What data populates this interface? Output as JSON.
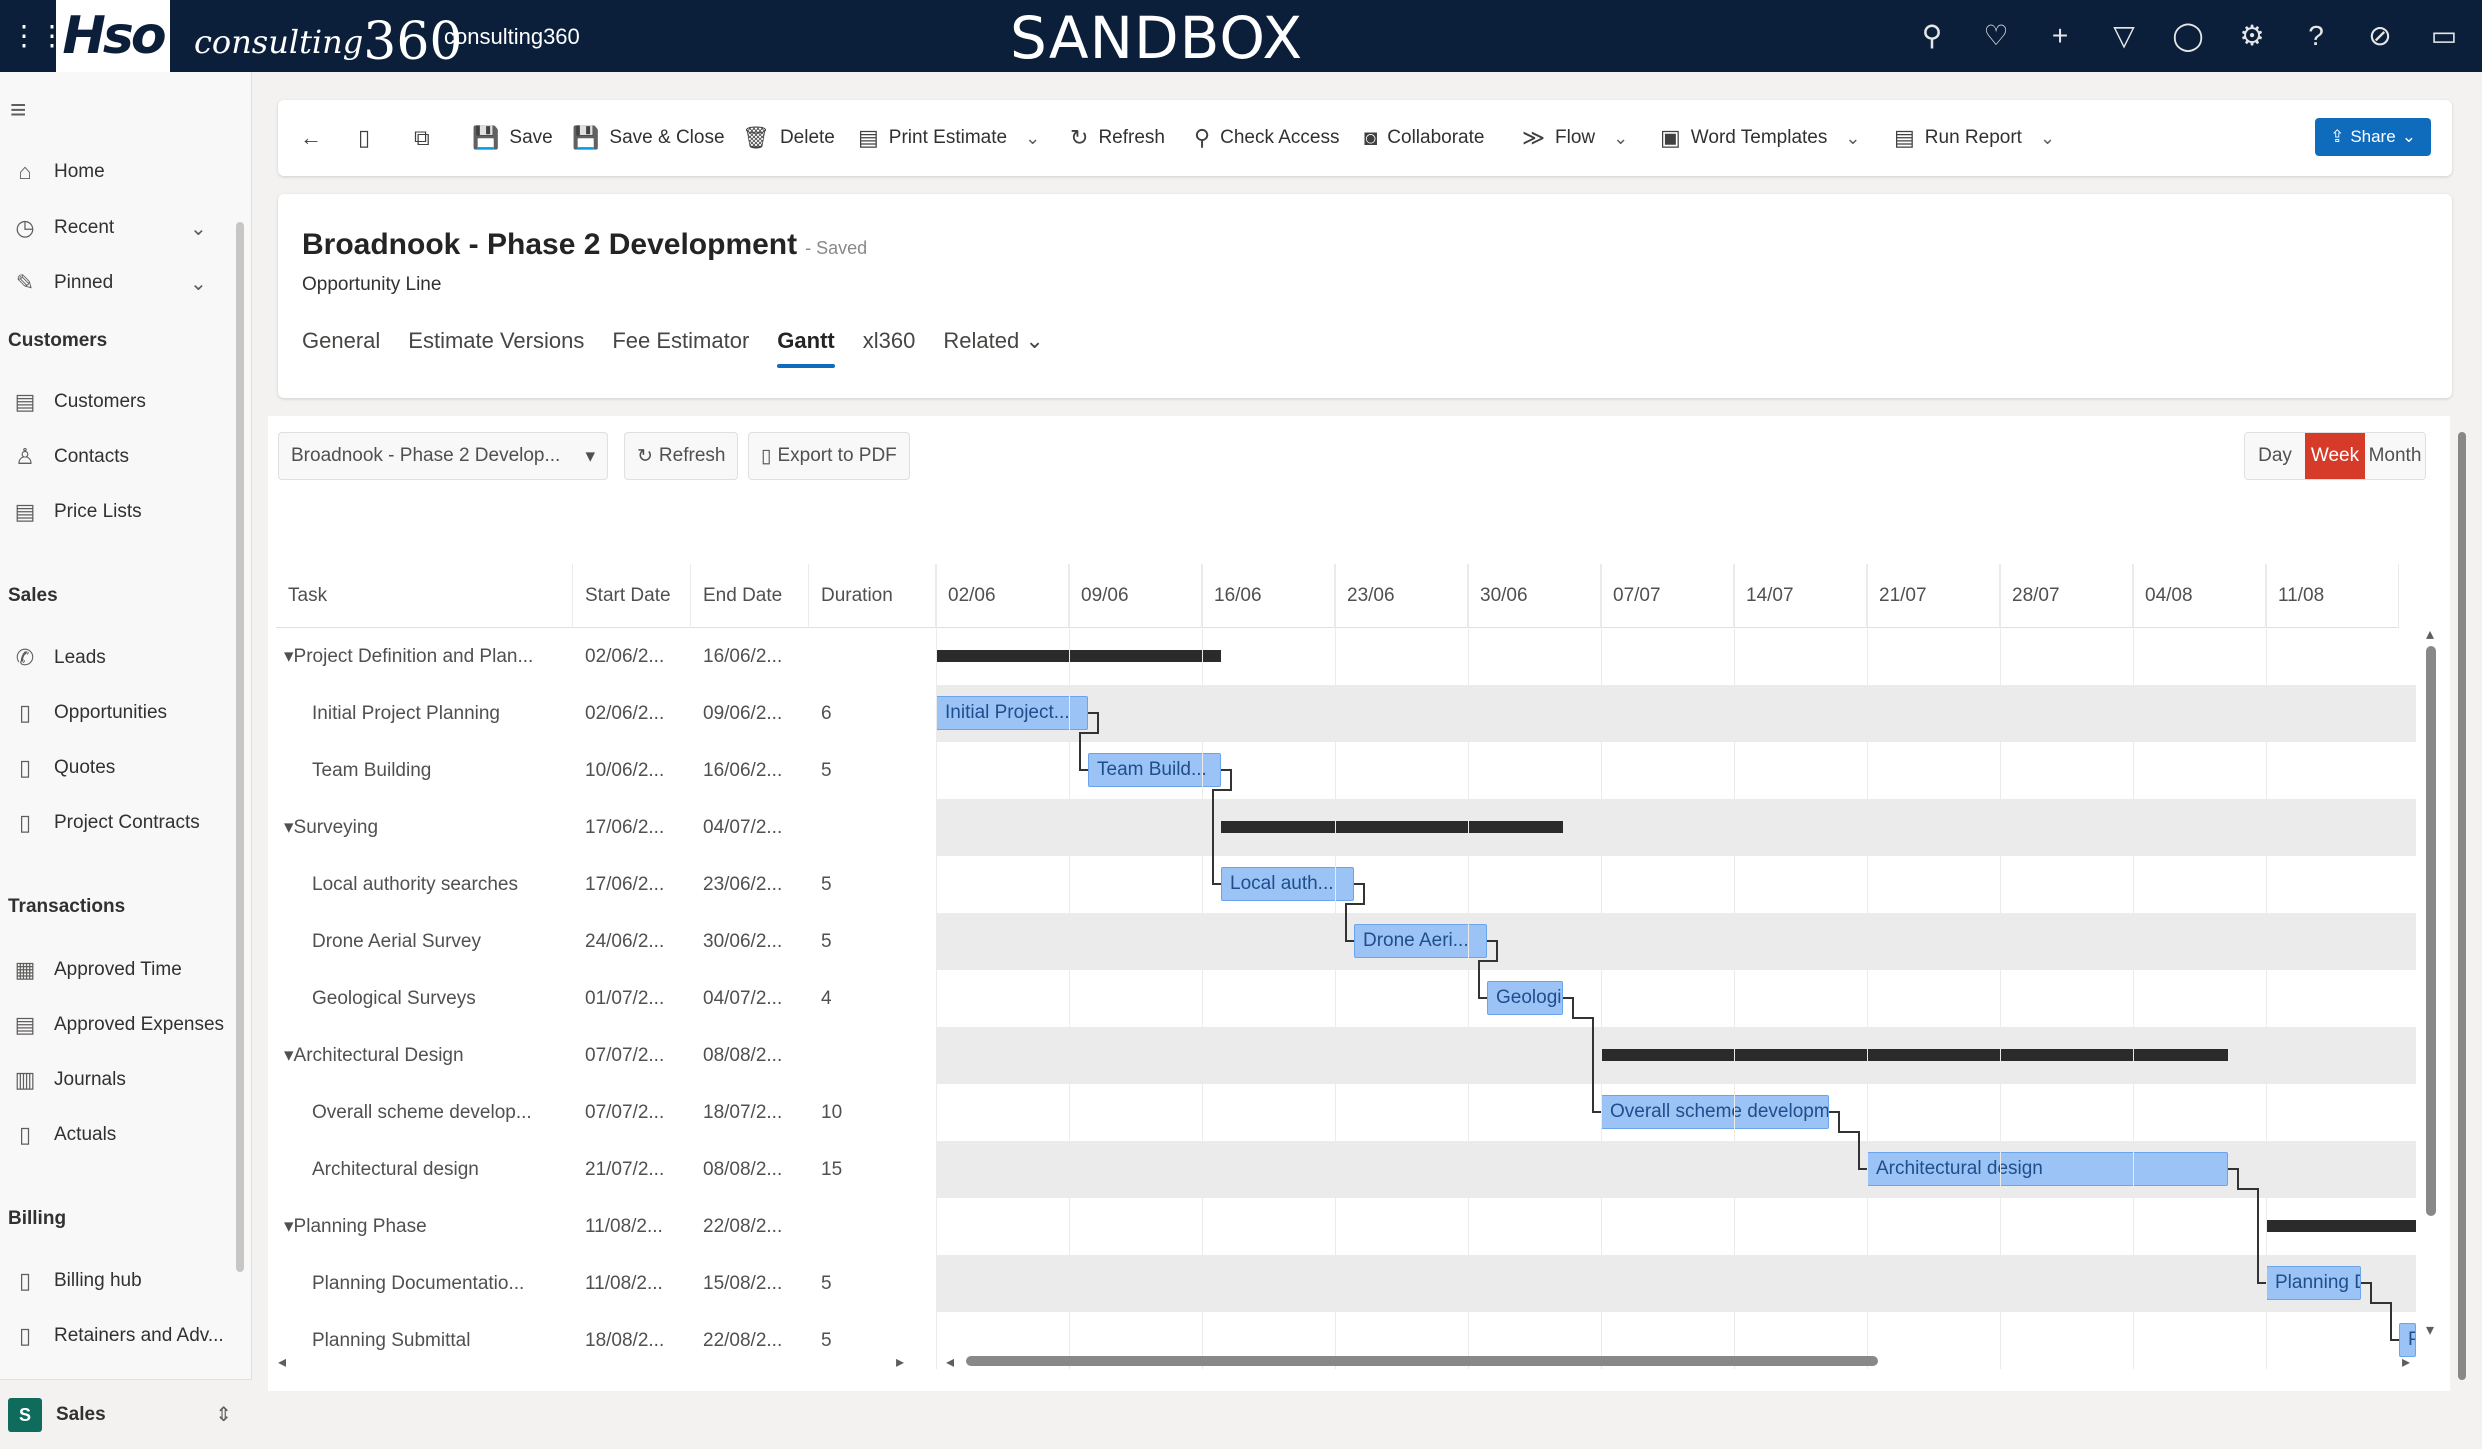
{
  "topbar": {
    "brand_left": "Hso",
    "brand_mid": "consulting",
    "brand_mid_num": "360",
    "env_name": "consulting360",
    "environment": "SANDBOX",
    "icons": [
      "search-icon",
      "lightbulb-icon",
      "plus-icon",
      "filter-icon",
      "bell-icon",
      "settings-icon",
      "help-icon",
      "assist-icon",
      "chat-icon"
    ]
  },
  "sidebar": {
    "top": [
      {
        "label": "Home",
        "icon": "home-icon"
      },
      {
        "label": "Recent",
        "icon": "clock-icon",
        "chevron": true
      },
      {
        "label": "Pinned",
        "icon": "pin-icon",
        "chevron": true
      }
    ],
    "groups": [
      {
        "title": "Customers",
        "items": [
          "Customers",
          "Contacts",
          "Price Lists"
        ]
      },
      {
        "title": "Sales",
        "items": [
          "Leads",
          "Opportunities",
          "Quotes",
          "Project Contracts"
        ]
      },
      {
        "title": "Transactions",
        "items": [
          "Approved Time",
          "Approved Expenses",
          "Journals",
          "Actuals"
        ]
      },
      {
        "title": "Billing",
        "items": [
          "Billing hub",
          "Retainers and Adv..."
        ]
      }
    ],
    "area": {
      "badge": "S",
      "label": "Sales"
    }
  },
  "commands": [
    {
      "label": "Save"
    },
    {
      "label": "Save & Close"
    },
    {
      "label": "Delete"
    },
    {
      "label": "Print Estimate"
    },
    {
      "label": "Refresh"
    },
    {
      "label": "Check Access"
    },
    {
      "label": "Collaborate"
    },
    {
      "label": "Flow"
    },
    {
      "label": "Word Templates"
    },
    {
      "label": "Run Report"
    }
  ],
  "share_label": "Share",
  "record": {
    "title": "Broadnook - Phase 2 Development",
    "saved": "- Saved",
    "type": "Opportunity Line",
    "tabs": [
      "General",
      "Estimate Versions",
      "Fee Estimator",
      "Gantt",
      "xl360",
      "Related"
    ]
  },
  "gantt": {
    "project_select": "Broadnook - Phase 2 Develop...",
    "refresh": "Refresh",
    "export": "Export to PDF",
    "views": [
      "Day",
      "Week",
      "Month"
    ],
    "active_view": "Week",
    "columns": [
      "Task",
      "Start Date",
      "End Date",
      "Duration"
    ],
    "weeks": [
      "02/06",
      "09/06",
      "16/06",
      "23/06",
      "30/06",
      "07/07",
      "14/07",
      "21/07",
      "28/07",
      "04/08",
      "11/08"
    ],
    "rows": [
      {
        "task": "Project Definition and Plan...",
        "start": "02/06/2...",
        "end": "16/06/2...",
        "duration": "",
        "summary": true
      },
      {
        "task": "Initial Project Planning",
        "start": "02/06/2...",
        "end": "09/06/2...",
        "duration": "6",
        "bar": "Initial Project..."
      },
      {
        "task": "Team Building",
        "start": "10/06/2...",
        "end": "16/06/2...",
        "duration": "5",
        "bar": "Team Build..."
      },
      {
        "task": "Surveying",
        "start": "17/06/2...",
        "end": "04/07/2...",
        "duration": "",
        "summary": true
      },
      {
        "task": "Local authority searches",
        "start": "17/06/2...",
        "end": "23/06/2...",
        "duration": "5",
        "bar": "Local auth..."
      },
      {
        "task": "Drone Aerial Survey",
        "start": "24/06/2...",
        "end": "30/06/2...",
        "duration": "5",
        "bar": "Drone Aeri..."
      },
      {
        "task": "Geological Surveys",
        "start": "01/07/2...",
        "end": "04/07/2...",
        "duration": "4",
        "bar": "Geologi..."
      },
      {
        "task": "Architectural Design",
        "start": "07/07/2...",
        "end": "08/08/2...",
        "duration": "",
        "summary": true
      },
      {
        "task": "Overall scheme develop...",
        "start": "07/07/2...",
        "end": "18/07/2...",
        "duration": "10",
        "bar": "Overall scheme development"
      },
      {
        "task": "Architectural design",
        "start": "21/07/2...",
        "end": "08/08/2...",
        "duration": "15",
        "bar": "Architectural design"
      },
      {
        "task": "Planning Phase",
        "start": "11/08/2...",
        "end": "22/08/2...",
        "duration": "",
        "summary": true
      },
      {
        "task": "Planning Documentatio...",
        "start": "11/08/2...",
        "end": "15/08/2...",
        "duration": "5",
        "bar": "Planning D..."
      },
      {
        "task": "Planning Submittal",
        "start": "18/08/2...",
        "end": "22/08/2...",
        "duration": "5",
        "bar": "P"
      }
    ]
  }
}
